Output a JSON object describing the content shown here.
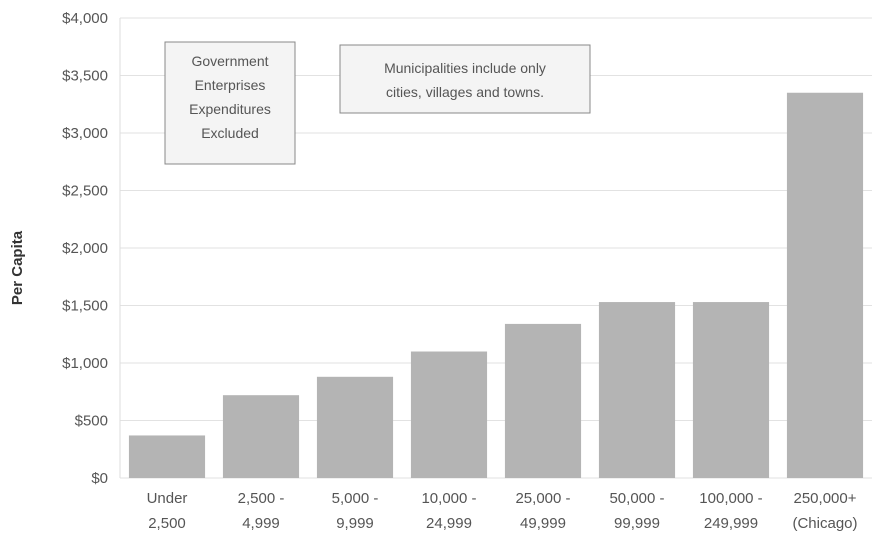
{
  "chart_data": {
    "type": "bar",
    "title": "",
    "xlabel": "",
    "ylabel": "Per Capita",
    "ylim": [
      0,
      4000
    ],
    "yticks": [
      0,
      500,
      1000,
      1500,
      2000,
      2500,
      3000,
      3500,
      4000
    ],
    "ytick_labels": [
      "$0",
      "$500",
      "$1,000",
      "$1,500",
      "$2,000",
      "$2,500",
      "$3,000",
      "$3,500",
      "$4,000"
    ],
    "categories": [
      [
        "Under",
        "2,500"
      ],
      [
        "2,500 -",
        "4,999"
      ],
      [
        "5,000 -",
        "9,999"
      ],
      [
        "10,000 -",
        "24,999"
      ],
      [
        "25,000 -",
        "49,999"
      ],
      [
        "50,000 -",
        "99,999"
      ],
      [
        "100,000 -",
        "249,999"
      ],
      [
        "250,000+",
        "(Chicago)"
      ]
    ],
    "values": [
      370,
      720,
      880,
      1100,
      1340,
      1530,
      1530,
      3350
    ],
    "bar_color": "#b4b4b4",
    "grid": true,
    "annotations": [
      [
        "Government",
        "Enterprises",
        "Expenditures",
        "Excluded"
      ],
      [
        "Municipalities include only",
        "cities, villages and towns."
      ]
    ]
  }
}
